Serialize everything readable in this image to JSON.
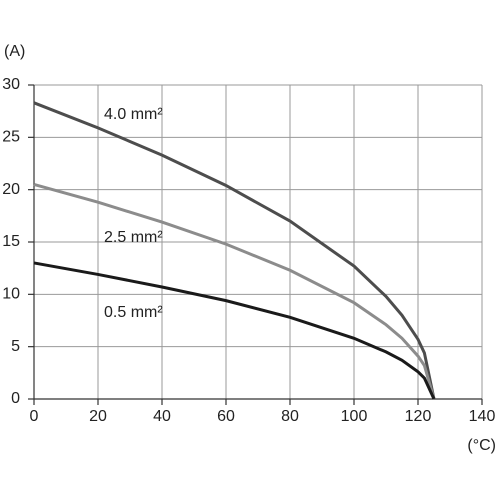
{
  "chart_data": {
    "type": "line",
    "y_label": "(A)",
    "x_label": "(°C)",
    "x": [
      0,
      20,
      40,
      60,
      80,
      100,
      110,
      115,
      120,
      122,
      125
    ],
    "series": [
      {
        "name": "4.0 mm²",
        "color": "#4d4d4d",
        "values": [
          28.3,
          25.9,
          23.3,
          20.4,
          17.0,
          12.7,
          9.8,
          8.0,
          5.7,
          4.4,
          0
        ]
      },
      {
        "name": "2.5 mm²",
        "color": "#8c8c8c",
        "values": [
          20.5,
          18.8,
          16.9,
          14.8,
          12.3,
          9.2,
          7.1,
          5.8,
          4.1,
          3.2,
          0
        ]
      },
      {
        "name": "0.5 mm²",
        "color": "#1a1a1a",
        "values": [
          13.0,
          11.9,
          10.7,
          9.4,
          7.8,
          5.8,
          4.5,
          3.7,
          2.6,
          2.0,
          0
        ]
      }
    ],
    "xlim": [
      0,
      140
    ],
    "xticks": [
      0,
      20,
      40,
      60,
      80,
      100,
      120,
      140
    ],
    "ylim": [
      0,
      30
    ],
    "yticks": [
      0,
      5,
      10,
      15,
      20,
      25,
      30
    ],
    "grid": true
  }
}
